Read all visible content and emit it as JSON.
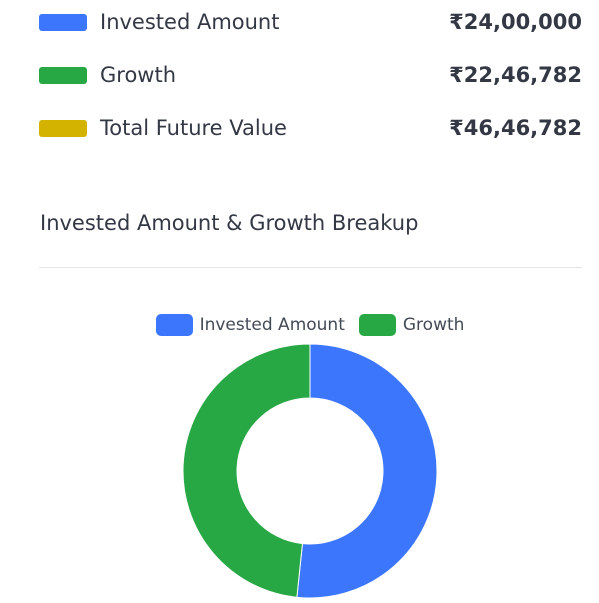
{
  "summary": [
    {
      "label": "Invested Amount",
      "value": "₹24,00,000",
      "color": "#3b76fc"
    },
    {
      "label": "Growth",
      "value": "₹22,46,782",
      "color": "#28a745"
    },
    {
      "label": "Total Future Value",
      "value": "₹46,46,782",
      "color": "#d4b300"
    }
  ],
  "breakup": {
    "title": "Invested Amount & Growth Breakup"
  },
  "chart_data": {
    "type": "pie",
    "variant": "doughnut",
    "categories": [
      "Invested Amount",
      "Growth"
    ],
    "values": [
      2400000,
      2246782
    ],
    "colors": [
      "#3b76fc",
      "#28a745"
    ],
    "legend": "top",
    "title": ""
  }
}
